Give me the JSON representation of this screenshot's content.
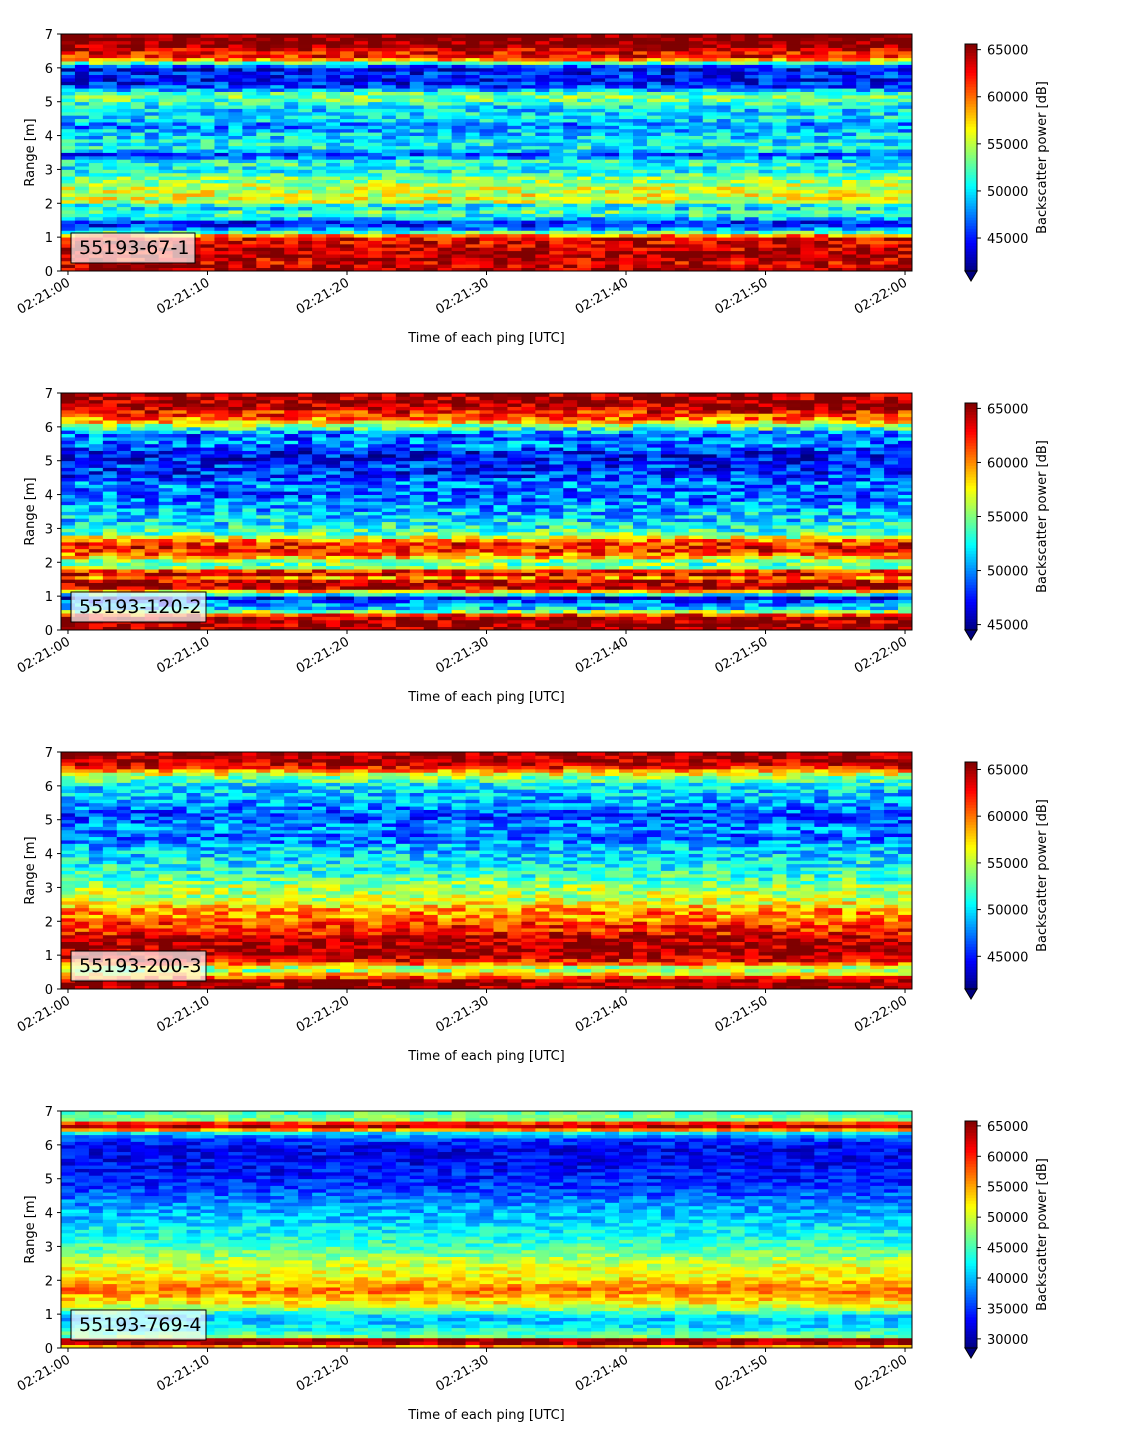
{
  "figure": {
    "xlabel": "Time of each ping [UTC]",
    "ylabel": "Range [m]",
    "colorbar_label": "Backscatter power [dB]",
    "x_ticks": [
      "02:21:00",
      "02:21:10",
      "02:21:20",
      "02:21:30",
      "02:21:40",
      "02:21:50",
      "02:22:00"
    ],
    "y_ticks": [
      "0",
      "1",
      "2",
      "3",
      "4",
      "5",
      "6",
      "7"
    ],
    "colormap": [
      "#00007f",
      "#0000ff",
      "#007fff",
      "#00ffff",
      "#7fff7f",
      "#ffff00",
      "#ff7f00",
      "#ff0000",
      "#7f0000"
    ]
  },
  "chart_data": [
    {
      "type": "heatmap",
      "annotation": "55193-67-1",
      "xlabel": "Time of each ping [UTC]",
      "ylabel": "Range [m]",
      "xlim": [
        -0.5,
        60.5
      ],
      "ylim": [
        0,
        7
      ],
      "colorbar": {
        "label": "Backscatter power [dB]",
        "ticks": [
          45000,
          50000,
          55000,
          60000,
          65000
        ],
        "range": [
          41500,
          65600
        ],
        "extend": "min"
      },
      "range_profile": [
        [
          0.0,
          65000
        ],
        [
          0.25,
          63500
        ],
        [
          0.5,
          64500
        ],
        [
          0.75,
          63500
        ],
        [
          1.0,
          63000
        ],
        [
          1.15,
          52000
        ],
        [
          1.3,
          46000
        ],
        [
          1.45,
          45000
        ],
        [
          1.6,
          51000
        ],
        [
          1.8,
          53000
        ],
        [
          1.9,
          47000
        ],
        [
          2.0,
          55000
        ],
        [
          2.2,
          56000
        ],
        [
          2.5,
          55000
        ],
        [
          2.8,
          53000
        ],
        [
          3.0,
          50500
        ],
        [
          3.2,
          52000
        ],
        [
          3.45,
          46000
        ],
        [
          3.6,
          51000
        ],
        [
          3.9,
          50000
        ],
        [
          4.1,
          49500
        ],
        [
          4.3,
          47000
        ],
        [
          4.5,
          50500
        ],
        [
          4.8,
          49500
        ],
        [
          5.0,
          52000
        ],
        [
          5.2,
          54000
        ],
        [
          5.45,
          46000
        ],
        [
          5.6,
          44500
        ],
        [
          5.8,
          45500
        ],
        [
          6.0,
          43500
        ],
        [
          6.15,
          53000
        ],
        [
          6.3,
          62000
        ],
        [
          6.5,
          63000
        ],
        [
          6.7,
          66000
        ],
        [
          7.0,
          66000
        ]
      ]
    },
    {
      "type": "heatmap",
      "annotation": "55193-120-2",
      "xlabel": "Time of each ping [UTC]",
      "ylabel": "Range [m]",
      "xlim": [
        -0.5,
        60.5
      ],
      "ylim": [
        0,
        7
      ],
      "colorbar": {
        "label": "Backscatter power [dB]",
        "ticks": [
          45000,
          50000,
          55000,
          60000,
          65000
        ],
        "range": [
          44500,
          65500
        ],
        "extend": "min"
      },
      "range_profile": [
        [
          0.0,
          65000
        ],
        [
          0.15,
          65000
        ],
        [
          0.4,
          65000
        ],
        [
          0.6,
          52000
        ],
        [
          0.8,
          50000
        ],
        [
          0.95,
          47000
        ],
        [
          1.1,
          56000
        ],
        [
          1.25,
          64000
        ],
        [
          1.4,
          65000
        ],
        [
          1.55,
          60000
        ],
        [
          1.7,
          65000
        ],
        [
          1.85,
          56000
        ],
        [
          2.0,
          54000
        ],
        [
          2.2,
          60000
        ],
        [
          2.4,
          63000
        ],
        [
          2.6,
          62000
        ],
        [
          2.8,
          55000
        ],
        [
          3.0,
          53000
        ],
        [
          3.2,
          52000
        ],
        [
          3.5,
          51000
        ],
        [
          3.8,
          50000
        ],
        [
          4.0,
          49000
        ],
        [
          4.3,
          50000
        ],
        [
          4.6,
          48000
        ],
        [
          4.9,
          48000
        ],
        [
          5.2,
          47000
        ],
        [
          5.5,
          50000
        ],
        [
          5.8,
          49000
        ],
        [
          6.0,
          55000
        ],
        [
          6.2,
          60000
        ],
        [
          6.4,
          62000
        ],
        [
          6.6,
          65000
        ],
        [
          6.8,
          65000
        ],
        [
          7.0,
          65000
        ]
      ]
    },
    {
      "type": "heatmap",
      "annotation": "55193-200-3",
      "xlabel": "Time of each ping [UTC]",
      "ylabel": "Range [m]",
      "xlim": [
        -0.5,
        60.5
      ],
      "ylim": [
        0,
        7
      ],
      "colorbar": {
        "label": "Backscatter power [dB]",
        "ticks": [
          45000,
          50000,
          55000,
          60000,
          65000
        ],
        "range": [
          41500,
          65800
        ],
        "extend": "min"
      },
      "range_profile": [
        [
          0.0,
          65000
        ],
        [
          0.25,
          65000
        ],
        [
          0.4,
          59000
        ],
        [
          0.6,
          53000
        ],
        [
          0.8,
          62000
        ],
        [
          1.0,
          65000
        ],
        [
          1.3,
          65000
        ],
        [
          1.5,
          65000
        ],
        [
          1.7,
          62000
        ],
        [
          1.9,
          62000
        ],
        [
          2.1,
          59000
        ],
        [
          2.3,
          60000
        ],
        [
          2.5,
          57000
        ],
        [
          2.7,
          55000
        ],
        [
          2.9,
          55000
        ],
        [
          3.1,
          54000
        ],
        [
          3.3,
          52000
        ],
        [
          3.6,
          51000
        ],
        [
          3.9,
          50000
        ],
        [
          4.2,
          49000
        ],
        [
          4.5,
          47000
        ],
        [
          4.8,
          48000
        ],
        [
          5.1,
          46000
        ],
        [
          5.4,
          48000
        ],
        [
          5.7,
          49000
        ],
        [
          6.0,
          50000
        ],
        [
          6.2,
          53000
        ],
        [
          6.4,
          57000
        ],
        [
          6.6,
          64000
        ],
        [
          6.8,
          65000
        ],
        [
          7.0,
          65000
        ]
      ]
    },
    {
      "type": "heatmap",
      "annotation": "55193-769-4",
      "xlabel": "Time of each ping [UTC]",
      "ylabel": "Range [m]",
      "xlim": [
        -0.5,
        60.5
      ],
      "ylim": [
        0,
        7
      ],
      "colorbar": {
        "label": "Backscatter power [dB]",
        "ticks": [
          30000,
          35000,
          40000,
          45000,
          50000,
          55000,
          60000,
          65000
        ],
        "range": [
          28500,
          65800
        ],
        "extend": "min"
      },
      "range_profile": [
        [
          0.0,
          48000
        ],
        [
          0.1,
          64000
        ],
        [
          0.25,
          65000
        ],
        [
          0.35,
          47000
        ],
        [
          0.6,
          42000
        ],
        [
          0.9,
          40000
        ],
        [
          1.1,
          46000
        ],
        [
          1.3,
          52000
        ],
        [
          1.5,
          54000
        ],
        [
          1.7,
          57000
        ],
        [
          1.9,
          55000
        ],
        [
          2.1,
          52000
        ],
        [
          2.4,
          51000
        ],
        [
          2.7,
          48000
        ],
        [
          3.0,
          45000
        ],
        [
          3.3,
          43000
        ],
        [
          3.6,
          42000
        ],
        [
          3.9,
          40000
        ],
        [
          4.2,
          39000
        ],
        [
          4.5,
          37000
        ],
        [
          4.8,
          35000
        ],
        [
          5.1,
          34000
        ],
        [
          5.4,
          33000
        ],
        [
          5.7,
          33000
        ],
        [
          6.0,
          33000
        ],
        [
          6.2,
          36000
        ],
        [
          6.35,
          42000
        ],
        [
          6.5,
          62000
        ],
        [
          6.6,
          65000
        ],
        [
          6.75,
          48000
        ],
        [
          7.0,
          45000
        ]
      ]
    }
  ]
}
